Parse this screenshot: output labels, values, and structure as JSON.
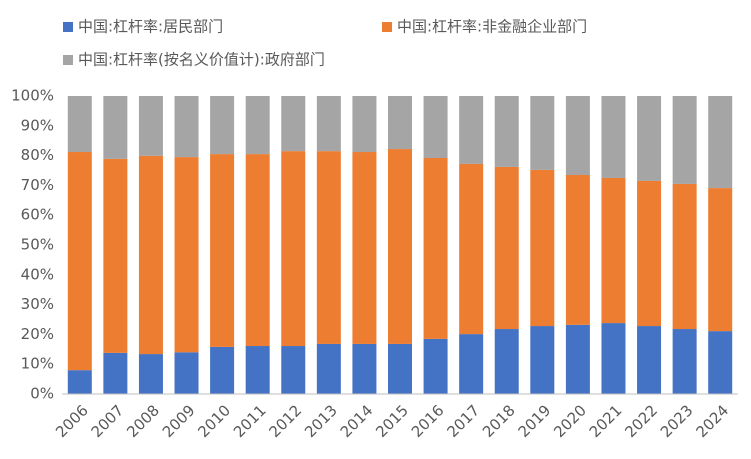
{
  "chart_data": {
    "type": "stacked_bar_100",
    "categories": [
      "2006",
      "2007",
      "2008",
      "2009",
      "2010",
      "2011",
      "2012",
      "2013",
      "2014",
      "2015",
      "2016",
      "2017",
      "2018",
      "2019",
      "2020",
      "2021",
      "2022",
      "2023",
      "2024"
    ],
    "series": [
      {
        "name": "中国:杠杆率:居民部门",
        "color": "#4472c4",
        "values": [
          8,
          13.8,
          13.4,
          14,
          15.8,
          16.1,
          16.1,
          16.8,
          16.8,
          16.8,
          18.5,
          20.1,
          21.8,
          22.8,
          23.2,
          23.8,
          22.8,
          21.8,
          21.1
        ]
      },
      {
        "name": "中国:杠杆率:非金融企业部门",
        "color": "#ed7d31",
        "values": [
          73.2,
          65.1,
          66.5,
          65.5,
          64.7,
          64.4,
          65.4,
          64.7,
          64.4,
          65.4,
          60.7,
          57.1,
          54.4,
          52.4,
          50.3,
          48.7,
          48.7,
          48.7,
          48.0
        ]
      },
      {
        "name": "中国:杠杆率(按名义价值计):政府部门",
        "color": "#a5a5a5",
        "values": [
          18.8,
          21.1,
          20.1,
          20.5,
          19.5,
          19.5,
          18.5,
          18.5,
          18.8,
          17.8,
          20.8,
          22.8,
          23.8,
          24.8,
          26.5,
          27.5,
          28.5,
          29.5,
          30.9
        ]
      }
    ],
    "ylim": [
      0,
      100
    ],
    "yticks": [
      {
        "value": 0,
        "label": "0%"
      },
      {
        "value": 10,
        "label": "10%"
      },
      {
        "value": 20,
        "label": "20%"
      },
      {
        "value": 30,
        "label": "30%"
      },
      {
        "value": 40,
        "label": "40%"
      },
      {
        "value": 50,
        "label": "50%"
      },
      {
        "value": 60,
        "label": "60%"
      },
      {
        "value": 70,
        "label": "70%"
      },
      {
        "value": 80,
        "label": "80%"
      },
      {
        "value": 90,
        "label": "90%"
      },
      {
        "value": 100,
        "label": "100%"
      }
    ],
    "grid": false
  }
}
